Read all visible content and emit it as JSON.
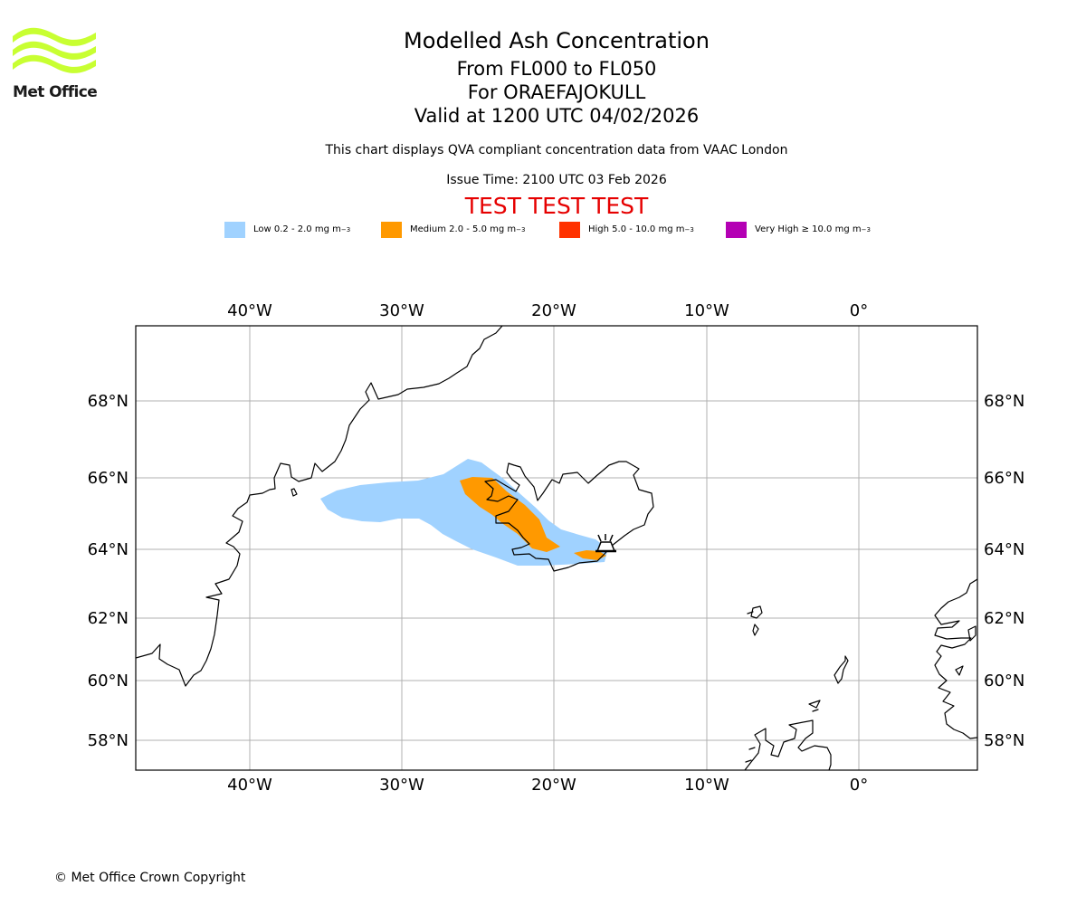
{
  "logo": {
    "text": "Met Office",
    "color": "#c8ff32"
  },
  "header": {
    "title": "Modelled Ash Concentration",
    "levels": "From FL000 to FL050",
    "volcano": "For ORAEFAJOKULL",
    "valid": "Valid at 1200 UTC 04/02/2026",
    "description": "This chart displays QVA compliant concentration data from VAAC London",
    "issue_time": "Issue Time: 2100 UTC 03 Feb 2026",
    "test_banner": "TEST TEST TEST"
  },
  "legend": {
    "items": [
      {
        "label": "Low 0.2 - 2.0 mg m",
        "color": "#a0d2ff"
      },
      {
        "label": "Medium 2.0 - 5.0 mg m",
        "color": "#ff9900"
      },
      {
        "label": "High 5.0 - 10.0 mg m",
        "color": "#ff3200"
      },
      {
        "label": "Very High ≥ 10.0 mg m",
        "color": "#b400b4"
      }
    ],
    "unit_exponent": "−3"
  },
  "map": {
    "lon_range": [
      -47.5,
      7.7
    ],
    "lat_range": [
      57.1,
      69.9
    ],
    "lon_ticks": [
      "40°W",
      "30°W",
      "20°W",
      "10°W",
      "0°"
    ],
    "lat_ticks": [
      "68°N",
      "66°N",
      "64°N",
      "62°N",
      "60°N",
      "58°N"
    ],
    "volcano_location": {
      "lat": 64.0,
      "lon": -16.65
    },
    "ash_colors": {
      "low": "#a0d2ff",
      "medium": "#ff9900"
    }
  },
  "footer": {
    "copyright": "© Met Office Crown Copyright"
  }
}
